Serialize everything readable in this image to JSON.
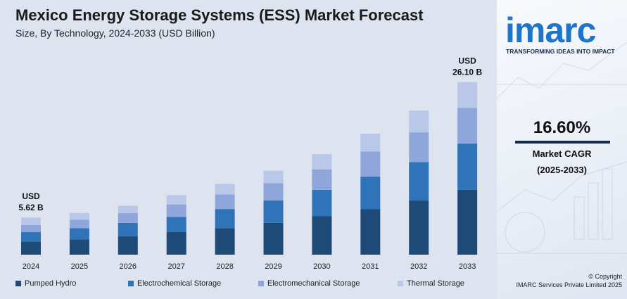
{
  "header": {
    "title": "Mexico Energy Storage Systems (ESS) Market Forecast",
    "subtitle": "Size, By Technology, 2024-2033 (USD Billion)"
  },
  "brand": {
    "logo": "imarc",
    "tagline": "TRANSFORMING IDEAS INTO IMPACT",
    "logo_color": "#1d74c9"
  },
  "cagr": {
    "value": "16.60%",
    "label": "Market CAGR",
    "period": "(2025-2033)"
  },
  "footer": {
    "copyright_line1": "© Copyright",
    "copyright_line2": "IMARC Services Private Limited 2025"
  },
  "chart_data": {
    "type": "bar",
    "stacked": true,
    "categories": [
      "2024",
      "2025",
      "2026",
      "2027",
      "2028",
      "2029",
      "2030",
      "2031",
      "2032",
      "2033"
    ],
    "series": [
      {
        "name": "Pumped Hydro",
        "color": "#1e4a78",
        "values": [
          2.0,
          2.3,
          2.8,
          3.4,
          4.0,
          4.8,
          5.8,
          6.9,
          8.2,
          9.8
        ]
      },
      {
        "name": "Electrochemical Storage",
        "color": "#2f74b8",
        "values": [
          1.4,
          1.7,
          2.0,
          2.3,
          2.9,
          3.4,
          4.0,
          4.9,
          5.8,
          7.0
        ]
      },
      {
        "name": "Electromechanical Storage",
        "color": "#8ea6d9",
        "values": [
          1.1,
          1.3,
          1.5,
          1.9,
          2.2,
          2.6,
          3.1,
          3.8,
          4.5,
          5.4
        ]
      },
      {
        "name": "Thermal Storage",
        "color": "#b9c8e9",
        "values": [
          1.12,
          1.0,
          1.1,
          1.4,
          1.6,
          1.9,
          2.3,
          2.7,
          3.3,
          3.9
        ]
      }
    ],
    "totals": [
      5.62,
      null,
      null,
      null,
      null,
      null,
      null,
      null,
      null,
      26.1
    ],
    "annotations": [
      {
        "category": "2024",
        "line1": "USD",
        "line2": "5.62 B"
      },
      {
        "category": "2033",
        "line1": "USD",
        "line2": "26.10 B"
      }
    ],
    "ylim": [
      0,
      30
    ],
    "grid": false,
    "legend_position": "bottom"
  }
}
